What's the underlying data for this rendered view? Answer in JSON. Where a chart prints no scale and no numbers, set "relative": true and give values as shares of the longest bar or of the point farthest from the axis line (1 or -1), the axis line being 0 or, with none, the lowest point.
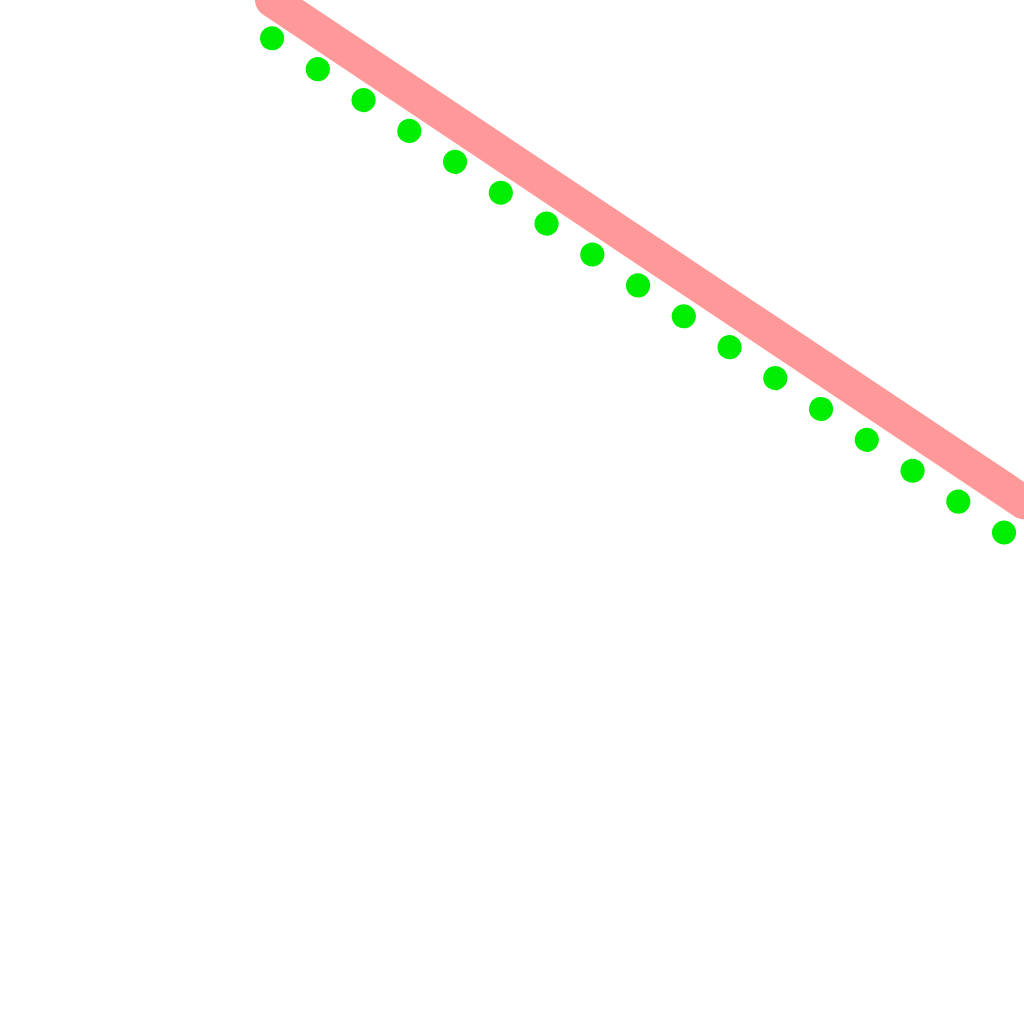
{
  "chart_data": {
    "type": "line",
    "relative": true,
    "categories": [
      null,
      null
    ],
    "series": [
      {
        "color": "#ff9999",
        "line_style": "solid",
        "values": [
          1.0,
          0.08
        ]
      },
      {
        "color": "#00ee00",
        "line_style": "dotted",
        "values": [
          0.93,
          0.0
        ]
      }
    ],
    "grid": false,
    "marker": "none"
  }
}
